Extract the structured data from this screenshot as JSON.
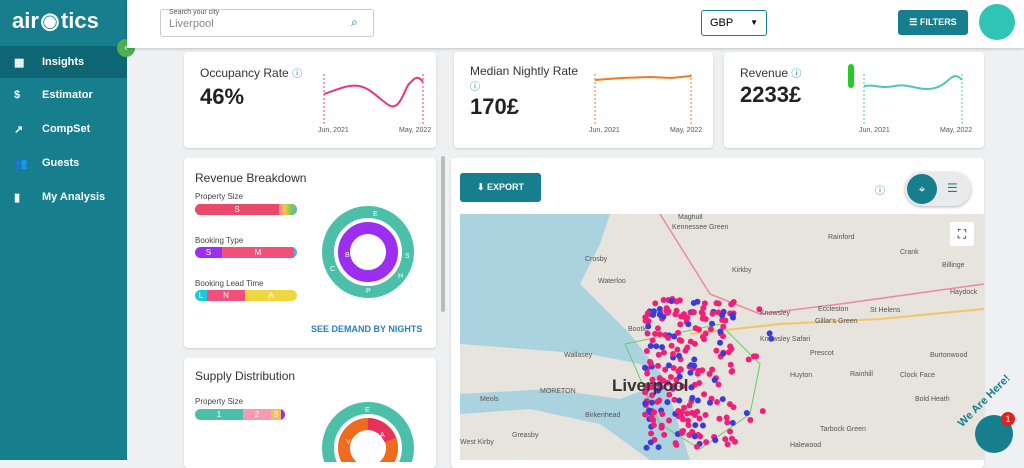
{
  "logo": {
    "left": "air",
    "right": "tics"
  },
  "sidebar": [
    "Insights",
    "Estimator",
    "CompSet",
    "Guests",
    "My Analysis"
  ],
  "search": {
    "label": "Search your city",
    "value": "Liverpool"
  },
  "currency": "GBP",
  "filters": "FILTERS",
  "kpis": [
    {
      "title": "Occupancy Rate",
      "value": "46%",
      "start": "Jun, 2021",
      "end": "May, 2022"
    },
    {
      "title": "Median Nightly Rate",
      "value": "170£",
      "start": "Jun, 2021",
      "end": "May, 2022"
    },
    {
      "title": "Revenue",
      "value": "2233£",
      "start": "Jun, 2021",
      "end": "May, 2022"
    }
  ],
  "revenue_breakdown": {
    "title": "Revenue Breakdown",
    "bars": [
      {
        "label": "Property Size",
        "segments": [
          "S"
        ]
      },
      {
        "label": "Booking Type",
        "segments": [
          "S",
          "M"
        ]
      },
      {
        "label": "Booking Lead Time",
        "segments": [
          "L",
          "N",
          "A"
        ]
      }
    ],
    "ring_labels": [
      "E",
      "B",
      "C",
      "P",
      "H",
      "S"
    ],
    "link": "SEE DEMAND BY NIGHTS"
  },
  "supply": {
    "title": "Supply Distribution",
    "bars": [
      {
        "label": "Property Size",
        "segments": [
          "1",
          "2",
          "3"
        ]
      }
    ],
    "ring_labels": [
      "E",
      "V",
      "A"
    ]
  },
  "export": "EXPORT",
  "map_places": [
    "Maghull",
    "Kennessee Green",
    "Rainford",
    "Crank",
    "Billinge",
    "Crosby",
    "Kirkby",
    "Haydock",
    "Waterloo",
    "Knowsley",
    "Eccleston",
    "St Helens",
    "Gillar's Green",
    "Bootle",
    "Knowsley Safari",
    "Prescot",
    "Wallasey",
    "Huyton",
    "Rainhill",
    "Clock Face",
    "Liverpool",
    "Burtonwood",
    "Meols",
    "MORETON",
    "Birkenhead",
    "Bold Heath",
    "Greasby",
    "Tarbock Green",
    "West Kirby",
    "Halewood"
  ],
  "chat": {
    "text": "We Are Here!",
    "badge": "1"
  }
}
